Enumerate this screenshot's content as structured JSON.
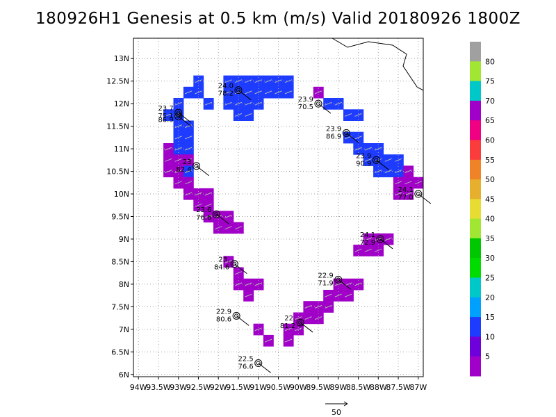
{
  "title": "180926H1 Genesis at 0.5 km (m/s) Valid 20180926  1800Z",
  "chart_data": {
    "type": "heatmap",
    "title": "180926H1 Genesis at 0.5 km (m/s) Valid 20180926  1800Z",
    "xlim": [
      -94.125,
      -86.875
    ],
    "ylim": [
      5.95,
      13.45
    ],
    "x_ticks": [
      "94W",
      "93.5W",
      "93W",
      "92.5W",
      "92W",
      "91.5W",
      "91W",
      "90.5W",
      "90W",
      "89.5W",
      "89W",
      "88.5W",
      "88W",
      "87.5W",
      "87W"
    ],
    "x_tick_values": [
      -94,
      -93.5,
      -93,
      -92.5,
      -92,
      -91.5,
      -91,
      -90.5,
      -90,
      -89.5,
      -89,
      -88.5,
      -88,
      -87.5,
      -87
    ],
    "y_ticks": [
      "6N",
      "6.5N",
      "7N",
      "7.5N",
      "8N",
      "8.5N",
      "9N",
      "9.5N",
      "10N",
      "10.5N",
      "11N",
      "11.5N",
      "12N",
      "12.5N",
      "13N"
    ],
    "y_tick_values": [
      6,
      6.5,
      7,
      7.5,
      8,
      8.5,
      9,
      9.5,
      10,
      10.5,
      11,
      11.5,
      12,
      12.5,
      13
    ],
    "grid": true,
    "colorbar": {
      "labels": [
        "5",
        "10",
        "15",
        "20",
        "25",
        "30",
        "35",
        "40",
        "45",
        "50",
        "55",
        "60",
        "65",
        "70",
        "75",
        "80"
      ],
      "colors": [
        "#a000c8",
        "#6e00dc",
        "#1e3cff",
        "#00a0ff",
        "#00c8c8",
        "#00dc00",
        "#00c800",
        "#a0e632",
        "#e6dc32",
        "#e6af2d",
        "#f08228",
        "#fa3c3c",
        "#f00082",
        "#a000c8",
        "#00c8c8",
        "#a0e632",
        "#a0a0a0"
      ],
      "cells": [
        {
          "color": "#a000c8"
        },
        {
          "color": "#6e00dc"
        },
        {
          "color": "#1e3cff"
        },
        {
          "color": "#00a0ff"
        },
        {
          "color": "#00c8c8"
        },
        {
          "color": "#00dc00"
        },
        {
          "color": "#00c800"
        },
        {
          "color": "#a0e632"
        },
        {
          "color": "#e6dc32"
        },
        {
          "color": "#e6af2d"
        },
        {
          "color": "#f08228"
        },
        {
          "color": "#fa3c3c"
        },
        {
          "color": "#f00082"
        },
        {
          "color": "#a000c8"
        },
        {
          "color": "#00c8c8"
        },
        {
          "color": "#a0e632"
        },
        {
          "color": "#a0a0a0"
        }
      ]
    },
    "observations": [
      {
        "lon": -93.0,
        "lat": 11.8,
        "wind": "23.7",
        "rh": "75.1"
      },
      {
        "lon": -93.0,
        "lat": 11.72,
        "wind": "",
        "rh": "86.9"
      },
      {
        "lon": -91.5,
        "lat": 12.3,
        "wind": "24.0",
        "rh": "78.2"
      },
      {
        "lon": -89.5,
        "lat": 12.0,
        "wind": "23.9",
        "rh": "70.5"
      },
      {
        "lon": -88.8,
        "lat": 11.35,
        "wind": "23.9",
        "rh": "86.9"
      },
      {
        "lon": -88.05,
        "lat": 10.75,
        "wind": "23.9",
        "rh": "90.9"
      },
      {
        "lon": -92.55,
        "lat": 10.62,
        "wind": "23",
        "rh": "82.4"
      },
      {
        "lon": -87.0,
        "lat": 10.0,
        "wind": "24.1",
        "rh": "77.0"
      },
      {
        "lon": -92.05,
        "lat": 9.55,
        "wind": "23.6",
        "rh": "76.6"
      },
      {
        "lon": -87.95,
        "lat": 9.0,
        "wind": "24.1",
        "rh": "72.9"
      },
      {
        "lon": -91.6,
        "lat": 8.45,
        "wind": "23.",
        "rh": "84.6"
      },
      {
        "lon": -89.0,
        "lat": 8.1,
        "wind": "22.9",
        "rh": "71.9"
      },
      {
        "lon": -91.55,
        "lat": 7.3,
        "wind": "22.9",
        "rh": "80.6"
      },
      {
        "lon": -89.95,
        "lat": 7.15,
        "wind": "22.",
        "rh": "81.2"
      },
      {
        "lon": -91.0,
        "lat": 6.25,
        "wind": "22.5",
        "rh": "76.6"
      }
    ],
    "wind_swaths": [
      {
        "cells": [
          [
            -91.75,
            12.5,
            "b"
          ],
          [
            -91.5,
            12.5,
            "b"
          ],
          [
            -91.25,
            12.5,
            "b"
          ],
          [
            -91.0,
            12.5,
            "b"
          ],
          [
            -90.75,
            12.5,
            "b"
          ],
          [
            -90.5,
            12.5,
            "b"
          ],
          [
            -90.25,
            12.5,
            "b"
          ],
          [
            -91.75,
            12.25,
            "b"
          ],
          [
            -91.5,
            12.25,
            "b"
          ],
          [
            -91.25,
            12.25,
            "b"
          ],
          [
            -91.0,
            12.25,
            "b"
          ],
          [
            -90.75,
            12.25,
            "b"
          ],
          [
            -90.5,
            12.25,
            "b"
          ],
          [
            -90.25,
            12.25,
            "b"
          ],
          [
            -91.75,
            12.0,
            "b"
          ],
          [
            -91.5,
            12.0,
            "b"
          ],
          [
            -91.25,
            12.0,
            "b"
          ],
          [
            -91.0,
            12.0,
            "b"
          ],
          [
            -92.25,
            12.0,
            "b"
          ],
          [
            -91.5,
            11.75,
            "b"
          ],
          [
            -91.25,
            11.75,
            "b"
          ]
        ]
      },
      {
        "cells": [
          [
            -92.75,
            12.25,
            "b"
          ],
          [
            -92.5,
            12.5,
            "b"
          ],
          [
            -92.5,
            12.25,
            "b"
          ],
          [
            -93.0,
            12.0,
            "b"
          ],
          [
            -93.0,
            11.75,
            "b"
          ],
          [
            -93.25,
            11.75,
            "b"
          ],
          [
            -93.0,
            11.5,
            "b"
          ],
          [
            -92.75,
            11.5,
            "b"
          ],
          [
            -92.75,
            11.25,
            "b"
          ],
          [
            -93.0,
            11.25,
            "b"
          ],
          [
            -93.25,
            11.0,
            "p"
          ],
          [
            -93.0,
            11.0,
            "b"
          ],
          [
            -92.75,
            11.0,
            "b"
          ],
          [
            -93.25,
            10.75,
            "p"
          ],
          [
            -93.0,
            10.75,
            "p"
          ],
          [
            -92.75,
            10.75,
            "p"
          ],
          [
            -93.0,
            10.5,
            "p"
          ],
          [
            -92.75,
            10.5,
            "b"
          ],
          [
            -93.25,
            10.5,
            "p"
          ]
        ]
      },
      {
        "cells": [
          [
            -93.0,
            10.25,
            "p"
          ],
          [
            -92.75,
            10.25,
            "p"
          ],
          [
            -92.75,
            10.0,
            "p"
          ],
          [
            -92.5,
            10.0,
            "p"
          ],
          [
            -92.25,
            10.0,
            "p"
          ],
          [
            -92.5,
            9.75,
            "p"
          ],
          [
            -92.25,
            9.75,
            "p"
          ],
          [
            -92.0,
            9.5,
            "p"
          ],
          [
            -92.25,
            9.5,
            "p"
          ],
          [
            -91.75,
            9.5,
            "p"
          ],
          [
            -92.0,
            9.25,
            "p"
          ],
          [
            -91.75,
            9.25,
            "p"
          ],
          [
            -91.5,
            9.25,
            "p"
          ]
        ]
      },
      {
        "cells": [
          [
            -91.75,
            8.5,
            "p"
          ],
          [
            -91.5,
            8.25,
            "p"
          ],
          [
            -91.5,
            8.0,
            "p"
          ],
          [
            -91.25,
            8.0,
            "p"
          ],
          [
            -91.0,
            8.0,
            "p"
          ],
          [
            -91.25,
            7.75,
            "p"
          ]
        ]
      },
      {
        "cells": [
          [
            -91.0,
            7.0,
            "p"
          ],
          [
            -90.75,
            6.75,
            "p"
          ]
        ]
      },
      {
        "cells": [
          [
            -89.5,
            12.25,
            "p"
          ],
          [
            -89.25,
            12.0,
            "b"
          ],
          [
            -89.0,
            12.0,
            "b"
          ],
          [
            -88.75,
            11.75,
            "b"
          ],
          [
            -88.5,
            11.75,
            "b"
          ],
          [
            -88.75,
            11.25,
            "b"
          ],
          [
            -88.5,
            11.25,
            "b"
          ],
          [
            -88.5,
            11.0,
            "b"
          ],
          [
            -88.25,
            11.0,
            "b"
          ],
          [
            -88.0,
            11.0,
            "b"
          ],
          [
            -88.25,
            10.75,
            "b"
          ],
          [
            -88.0,
            10.75,
            "b"
          ],
          [
            -87.75,
            10.75,
            "b"
          ],
          [
            -87.5,
            10.75,
            "b"
          ],
          [
            -88.0,
            10.5,
            "b"
          ],
          [
            -87.75,
            10.5,
            "b"
          ],
          [
            -87.5,
            10.5,
            "b"
          ],
          [
            -87.25,
            10.5,
            "p"
          ],
          [
            -87.5,
            10.25,
            "p"
          ],
          [
            -87.25,
            10.25,
            "p"
          ],
          [
            -87.0,
            10.25,
            "p"
          ],
          [
            -87.5,
            10.0,
            "p"
          ],
          [
            -87.25,
            10.0,
            "p"
          ]
        ]
      },
      {
        "cells": [
          [
            -88.25,
            9.0,
            "p"
          ],
          [
            -88.0,
            9.0,
            "p"
          ],
          [
            -87.75,
            9.0,
            "p"
          ],
          [
            -88.5,
            8.75,
            "p"
          ],
          [
            -88.25,
            8.75,
            "p"
          ],
          [
            -88.0,
            8.75,
            "p"
          ]
        ]
      },
      {
        "cells": [
          [
            -89.0,
            8.0,
            "p"
          ],
          [
            -88.75,
            8.0,
            "p"
          ],
          [
            -88.5,
            8.0,
            "p"
          ],
          [
            -89.25,
            7.75,
            "p"
          ],
          [
            -89.0,
            7.75,
            "p"
          ],
          [
            -88.75,
            7.75,
            "p"
          ],
          [
            -89.75,
            7.5,
            "p"
          ],
          [
            -89.5,
            7.5,
            "p"
          ],
          [
            -89.25,
            7.5,
            "p"
          ],
          [
            -90.0,
            7.25,
            "p"
          ],
          [
            -89.75,
            7.25,
            "p"
          ],
          [
            -89.5,
            7.25,
            "p"
          ],
          [
            -90.25,
            7.0,
            "p"
          ],
          [
            -90.0,
            7.0,
            "p"
          ],
          [
            -90.25,
            6.75,
            "p"
          ]
        ]
      }
    ],
    "scale_arrow_label": "50"
  }
}
